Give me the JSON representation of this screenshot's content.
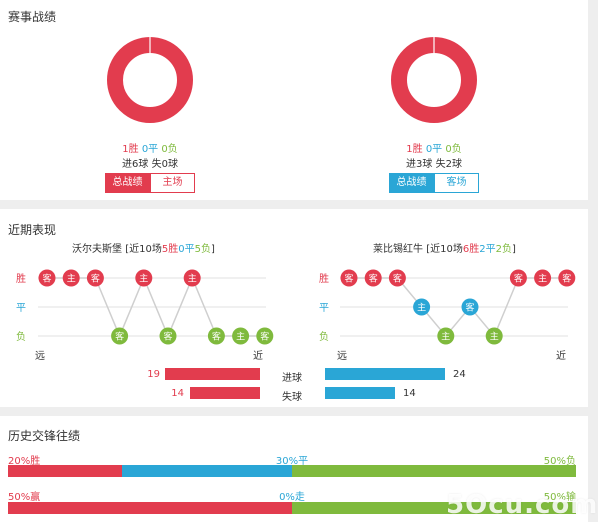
{
  "match_record": {
    "title": "赛事战绩",
    "left": {
      "win": "1胜",
      "draw": "0平",
      "loss": "0负",
      "goals": "进6球 失0球",
      "btn_overall": "总战绩",
      "btn_venue": "主场",
      "ring_fraction": 1.0
    },
    "right": {
      "win": "1胜",
      "draw": "0平",
      "loss": "0负",
      "goals": "进3球 失2球",
      "btn_overall": "总战绩",
      "btn_venue": "客场",
      "ring_fraction": 1.0
    }
  },
  "recent_form": {
    "title": "近期表现",
    "row_labels": {
      "win": "胜",
      "draw": "平",
      "loss": "负"
    },
    "far_label": "远",
    "near_label": "近",
    "left": {
      "team": "沃尔夫斯堡",
      "summary_prefix": "[近10场",
      "wins": "5胜",
      "draws": "0平",
      "losses": "5负",
      "summary_suffix": "]",
      "results": [
        {
          "r": "W",
          "v": "客"
        },
        {
          "r": "W",
          "v": "主"
        },
        {
          "r": "W",
          "v": "客"
        },
        {
          "r": "L",
          "v": "客"
        },
        {
          "r": "W",
          "v": "主"
        },
        {
          "r": "L",
          "v": "客"
        },
        {
          "r": "W",
          "v": "主"
        },
        {
          "r": "L",
          "v": "客"
        },
        {
          "r": "L",
          "v": "主"
        },
        {
          "r": "L",
          "v": "客"
        }
      ]
    },
    "right": {
      "team": "莱比锡红牛",
      "summary_prefix": "[近10场",
      "wins": "6胜",
      "draws": "2平",
      "losses": "2负",
      "summary_suffix": "]",
      "results": [
        {
          "r": "W",
          "v": "客"
        },
        {
          "r": "W",
          "v": "客"
        },
        {
          "r": "W",
          "v": "客"
        },
        {
          "r": "D",
          "v": "主"
        },
        {
          "r": "L",
          "v": "主"
        },
        {
          "r": "D",
          "v": "客"
        },
        {
          "r": "L",
          "v": "主"
        },
        {
          "r": "W",
          "v": "客"
        },
        {
          "r": "W",
          "v": "主"
        },
        {
          "r": "W",
          "v": "客"
        }
      ]
    },
    "goals_for_label": "进球",
    "goals_against_label": "失球",
    "left_goals_for": 19,
    "left_goals_against": 14,
    "right_goals_for": 24,
    "right_goals_against": 14
  },
  "h2h": {
    "title": "历史交锋往绩",
    "row1": {
      "a": "20%胜",
      "b": "30%平",
      "c": "50%负",
      "pa": 20,
      "pb": 30,
      "pc": 50
    },
    "row2": {
      "a": "50%赢",
      "b": "0%走",
      "c": "50%输",
      "pa": 50,
      "pb": 0,
      "pc": 50
    }
  },
  "colors": {
    "red": "#e23c4e",
    "blue": "#2aa6d6",
    "green": "#7fba3d",
    "grey": "#cfcfcf"
  },
  "watermark": "5Ocu.com"
}
